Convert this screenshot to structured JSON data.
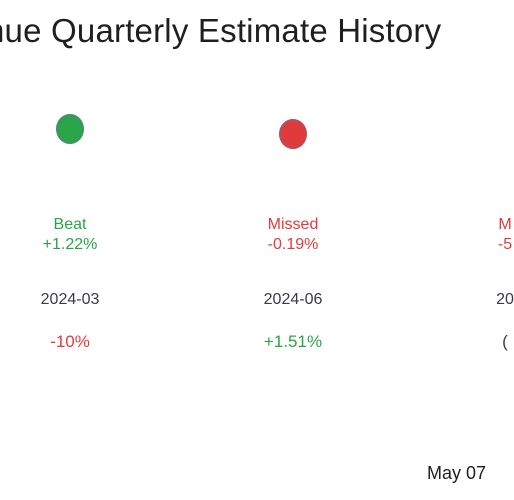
{
  "title": "nue Quarterly Estimate History",
  "date_label": "May 07",
  "colors": {
    "beat": "#2aa54a",
    "missed": "#e03b3b"
  },
  "chart_data": {
    "type": "scatter",
    "title": "nue Quarterly Estimate History",
    "categories": [
      "2024-03",
      "2024-06",
      "20"
    ],
    "series": [
      {
        "values": [
          1.22,
          -0.19,
          null
        ]
      }
    ],
    "points": [
      {
        "period": "2024-03",
        "status": "Beat",
        "surprise": "+1.22%",
        "price_change": "-10%",
        "outcome": "beat"
      },
      {
        "period": "2024-06",
        "status": "Missed",
        "surprise": "-0.19%",
        "price_change": "+1.51%",
        "outcome": "missed"
      },
      {
        "period": "20",
        "status": "M",
        "surprise": "-5",
        "price_change": "(",
        "outcome": "missed"
      }
    ],
    "grid": false,
    "legend": "none"
  }
}
